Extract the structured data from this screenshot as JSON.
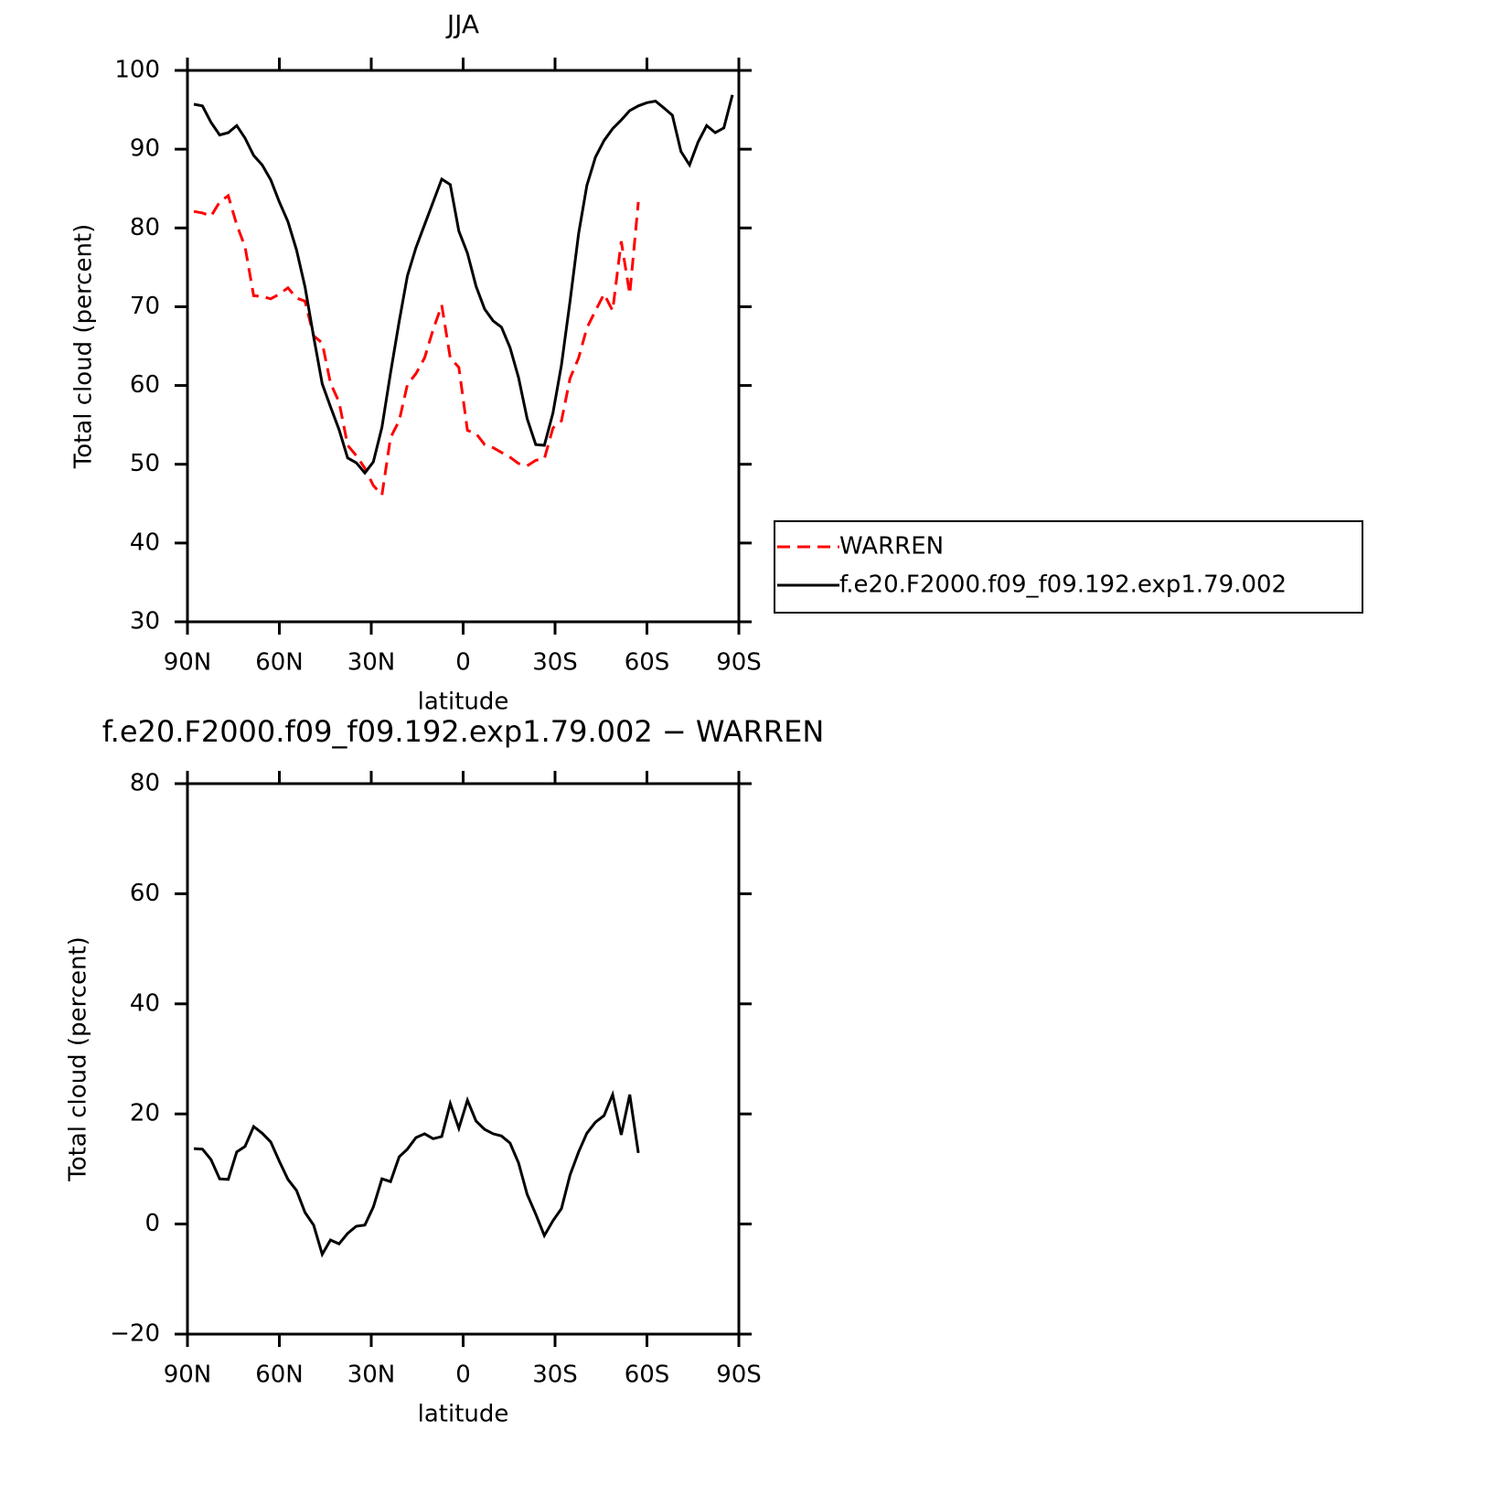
{
  "chart_data": [
    {
      "type": "line",
      "title": "JJA",
      "xlabel": "latitude",
      "ylabel": "Total cloud (percent)",
      "x": [
        87.9,
        85.1,
        82.3,
        79.5,
        76.7,
        73.9,
        71.2,
        68.4,
        65.6,
        62.8,
        60.0,
        57.2,
        54.4,
        51.6,
        48.8,
        46.0,
        43.3,
        40.5,
        37.7,
        34.9,
        32.1,
        29.3,
        26.5,
        23.7,
        20.9,
        18.2,
        15.4,
        12.6,
        9.8,
        7.0,
        4.2,
        1.4,
        -1.4,
        -4.2,
        -7.0,
        -9.8,
        -12.5,
        -15.3,
        -18.1,
        -20.9,
        -23.7,
        -26.5,
        -29.3,
        -32.1,
        -34.9,
        -37.7,
        -40.4,
        -43.2,
        -46.0,
        -48.8,
        -51.6,
        -54.4,
        -57.2,
        -60.0,
        -62.8,
        -65.6,
        -68.3,
        -71.1,
        -73.9,
        -76.7,
        -79.5,
        -82.3,
        -85.1,
        -87.9
      ],
      "series": [
        {
          "name": "WARREN",
          "color": "#ff0000",
          "linestyle": "dashed",
          "values": [
            82.1,
            81.9,
            81.5,
            83.3,
            84.1,
            80.4,
            77.6,
            71.4,
            71.3,
            71.0,
            71.6,
            72.4,
            71.1,
            70.7,
            66.3,
            65.4,
            60.3,
            57.9,
            52.4,
            51.1,
            49.5,
            47.3,
            46.1,
            53.4,
            55.5,
            60.1,
            61.5,
            63.5,
            67.1,
            70.2,
            63.5,
            62.3,
            54.3,
            53.9,
            52.5,
            52.1,
            51.5,
            50.9,
            50.1,
            49.8,
            50.5,
            50.7,
            54.6,
            55.5,
            60.9,
            63.5,
            67.3,
            69.5,
            71.6,
            69.5,
            78.3,
            71.6,
            83.3,
            null,
            null,
            null,
            null,
            null,
            null,
            null,
            null,
            null,
            null,
            null
          ]
        },
        {
          "name": "f.e20.F2000.f09_f09.192.exp1.79.002",
          "color": "#000000",
          "linestyle": "solid",
          "values": [
            95.7,
            95.5,
            93.4,
            91.8,
            92.1,
            93.0,
            91.4,
            89.2,
            88.0,
            86.1,
            83.3,
            80.8,
            77.2,
            72.5,
            66.2,
            60.2,
            57.3,
            54.4,
            50.8,
            50.2,
            48.9,
            50.3,
            54.7,
            61.6,
            68.1,
            73.9,
            77.5,
            80.4,
            83.3,
            86.2,
            85.5,
            79.6,
            76.8,
            72.6,
            69.7,
            68.2,
            67.4,
            64.8,
            61.0,
            55.8,
            52.5,
            52.4,
            56.5,
            62.6,
            70.7,
            79.3,
            85.4,
            89.0,
            91.1,
            92.6,
            93.7,
            94.9,
            95.5,
            95.9,
            96.1,
            95.2,
            94.3,
            89.7,
            88.0,
            90.9,
            93.0,
            92.1,
            92.7,
            96.9
          ]
        }
      ],
      "xlim": [
        90,
        -90
      ],
      "xticks": [
        {
          "value": 90,
          "label": "90N"
        },
        {
          "value": 60,
          "label": "60N"
        },
        {
          "value": 30,
          "label": "30N"
        },
        0,
        {
          "value": -30,
          "label": "30S"
        },
        {
          "value": -60,
          "label": "60S"
        },
        {
          "value": -90,
          "label": "90S"
        }
      ],
      "ylim": [
        30,
        100
      ],
      "yticks": [
        30,
        40,
        50,
        60,
        70,
        80,
        90,
        100
      ],
      "legend": "right"
    },
    {
      "type": "line",
      "title": "f.e20.F2000.f09_f09.192.exp1.79.002 − WARREN",
      "xlabel": "latitude",
      "ylabel": "Total cloud (percent)",
      "x": [
        87.9,
        85.1,
        82.3,
        79.5,
        76.7,
        73.9,
        71.2,
        68.4,
        65.6,
        62.8,
        60.0,
        57.2,
        54.4,
        51.6,
        48.8,
        46.0,
        43.3,
        40.5,
        37.7,
        34.9,
        32.1,
        29.3,
        26.5,
        23.7,
        20.9,
        18.2,
        15.4,
        12.6,
        9.8,
        7.0,
        4.2,
        1.4,
        -1.4,
        -4.2,
        -7.0,
        -9.8,
        -12.5,
        -15.3,
        -18.1,
        -20.9,
        -23.7,
        -26.5,
        -29.3,
        -32.1,
        -34.9,
        -37.7,
        -40.4,
        -43.2,
        -46.0,
        -48.8,
        -51.6,
        -54.4,
        -57.2,
        -60.0,
        -62.8,
        -65.6,
        -68.3,
        -71.1,
        -73.9,
        -76.7,
        -79.5,
        -82.3,
        -85.1,
        -87.9
      ],
      "values": [
        13.7,
        13.6,
        11.7,
        8.2,
        8.1,
        13.1,
        14.1,
        17.7,
        16.5,
        14.9,
        11.4,
        8.1,
        6.1,
        2.1,
        -0.2,
        -5.5,
        -2.9,
        -3.6,
        -1.7,
        -0.4,
        -0.2,
        3.1,
        8.2,
        7.7,
        12.2,
        13.6,
        15.7,
        16.4,
        15.5,
        15.9,
        21.9,
        17.4,
        22.5,
        18.7,
        17.2,
        16.4,
        16.0,
        14.7,
        11.1,
        5.4,
        1.8,
        -2.1,
        0.6,
        2.8,
        8.9,
        13.1,
        16.5,
        18.5,
        19.7,
        23.5,
        16.2,
        23.5,
        12.9,
        null,
        null,
        null,
        null,
        null,
        null,
        null,
        null,
        null,
        null,
        null
      ],
      "color": "#000000",
      "xlim": [
        90,
        -90
      ],
      "xticks": [
        {
          "value": 90,
          "label": "90N"
        },
        {
          "value": 60,
          "label": "60N"
        },
        {
          "value": 30,
          "label": "30N"
        },
        0,
        {
          "value": -30,
          "label": "30S"
        },
        {
          "value": -60,
          "label": "60S"
        },
        {
          "value": -90,
          "label": "90S"
        }
      ],
      "ylim": [
        -20,
        80
      ],
      "yticks": [
        {
          "value": -20,
          "label": "−20"
        },
        0,
        20,
        40,
        60,
        80
      ]
    }
  ]
}
